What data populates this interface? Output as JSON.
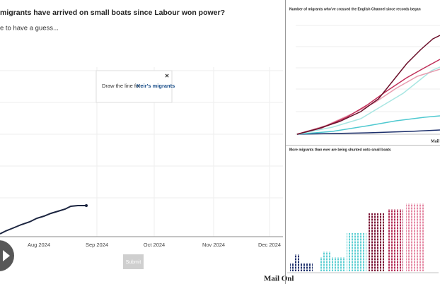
{
  "left_panel": {
    "title": "migrants have arrived on small boats since Labour won power?",
    "subtitle": "e to have a guess...",
    "popup": {
      "prompt": "Draw the line for:",
      "name": "Keir's migrants",
      "close": "×"
    },
    "x_labels": [
      "Aug 2024",
      "Sep 2024",
      "Oct 2024",
      "Nov 2024",
      "Dec 2024"
    ],
    "button": "Submit",
    "logo": "Mail Onl"
  },
  "right_panel": {
    "top_title": "Number of migrants who've crossed the English Channel since records began",
    "top_logo": "Mail",
    "bottom_title": "More migrants than ever are being shunted onto small boats"
  }
}
